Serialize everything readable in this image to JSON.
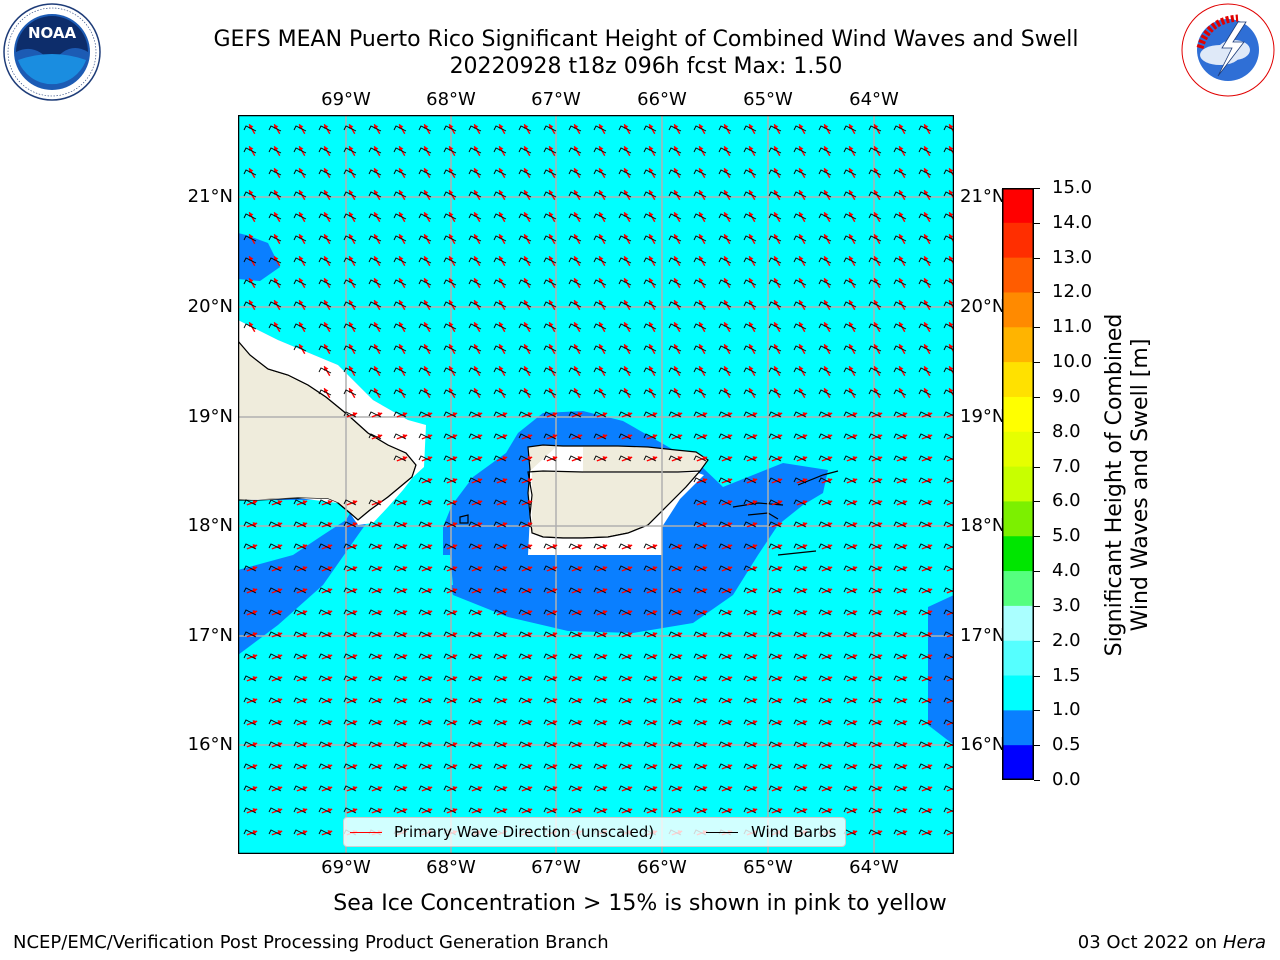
{
  "title": {
    "line1": "GEFS MEAN Puerto Rico Significant Height of Combined Wind Waves and Swell",
    "line2": "20220928 t18z 096h fcst   Max: 1.50"
  },
  "logos": {
    "left": {
      "text": "NOAA",
      "ring_text": "NATIONAL OCEANIC AND ATMOSPHERIC ADMINISTRATION · U.S. DEPARTMENT OF COMMERCE"
    },
    "right": {
      "ring_text": "NATIONAL WEATHER SERVICE"
    }
  },
  "map": {
    "lon_labels": [
      "69°W",
      "68°W",
      "67°W",
      "66°W",
      "65°W",
      "64°W"
    ],
    "lat_labels": [
      "21°N",
      "20°N",
      "19°N",
      "18°N",
      "17°N",
      "16°N"
    ],
    "colors": {
      "ocean_base": "#00ffff",
      "band_0.5_1.0": "#0a7fff",
      "land": "#efecdc",
      "coastline": "#000000",
      "gridline": "#b0b0b0",
      "wave_direction": "#ff0000",
      "wind_barb": "#000000"
    }
  },
  "legend": {
    "wave_direction": "Primary Wave Direction (unscaled)",
    "wind_barbs": "Wind Barbs"
  },
  "colorbar": {
    "title_line1": "Significant Height of Combined",
    "title_line2": "Wind Waves and Swell [m]",
    "levels": [
      "15.0",
      "14.0",
      "13.0",
      "12.0",
      "11.0",
      "10.0",
      "9.0",
      "8.0",
      "7.0",
      "6.0",
      "5.0",
      "4.0",
      "3.0",
      "2.0",
      "1.5",
      "1.0",
      "0.5",
      "0.0"
    ],
    "colors": [
      "#ff0000",
      "#ff2e00",
      "#ff5c00",
      "#ff8a00",
      "#ffb400",
      "#ffe100",
      "#ffff00",
      "#e6ff00",
      "#c8ff00",
      "#7cf000",
      "#00e600",
      "#55ff7f",
      "#aaffff",
      "#55ffff",
      "#00ffff",
      "#0a7fff",
      "#0000ff"
    ]
  },
  "footnote": "Sea Ice Concentration > 15% is shown in pink to yellow",
  "credits": {
    "left": "NCEP/EMC/Verification Post Processing Product Generation Branch",
    "right_prefix": "03 Oct 2022 on ",
    "right_host": "Hera"
  }
}
